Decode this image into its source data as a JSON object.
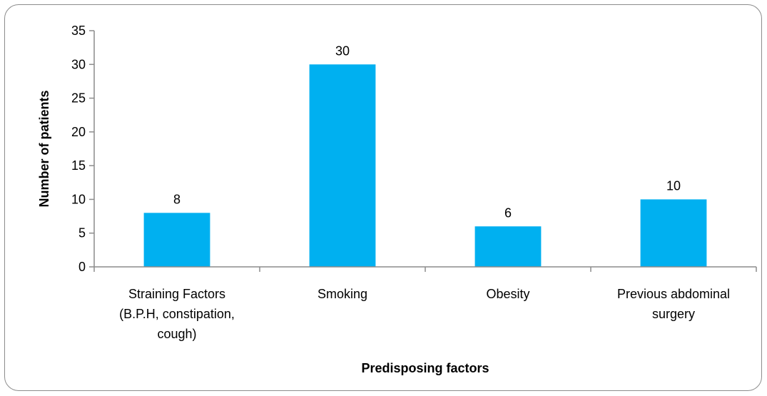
{
  "chart_data": {
    "type": "bar",
    "title": "",
    "xlabel": "Predisposing factors",
    "ylabel": "Number of patients",
    "ylim": [
      0,
      35
    ],
    "yticks": [
      0,
      5,
      10,
      15,
      20,
      25,
      30,
      35
    ],
    "categories": [
      [
        "Straining Factors",
        "(B.P.H, constipation,",
        "cough)"
      ],
      [
        "Smoking"
      ],
      [
        "Obesity"
      ],
      [
        "Previous  abdominal",
        "surgery"
      ]
    ],
    "values": [
      8,
      30,
      6,
      10
    ],
    "data_labels": [
      "8",
      "30",
      "6",
      "10"
    ],
    "bar_color": "#00b0f0",
    "grid": false,
    "legend": "none"
  }
}
